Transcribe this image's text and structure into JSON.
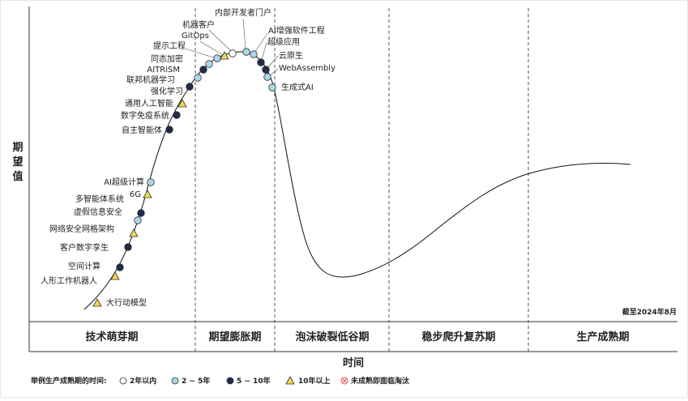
{
  "y_axis_label": [
    "期",
    "望",
    "值"
  ],
  "x_axis_label": "时间",
  "date_note": "截至2024年8月",
  "phases": [
    "技术萌芽期",
    "期望膨胀期",
    "泡沫破裂低谷期",
    "稳步爬升复苏期",
    "生产成熟期"
  ],
  "legend": {
    "title": "举例生产成熟期的时间:",
    "items": [
      {
        "label": "2年以内",
        "marker": "circle-white",
        "color": "#ffffff"
      },
      {
        "label": "2 ~ 5年",
        "marker": "circle-light",
        "color": "#a8d8ea"
      },
      {
        "label": "5 ~ 10年",
        "marker": "circle-dark",
        "color": "#1f2a4d"
      },
      {
        "label": "10年以上",
        "marker": "triangle",
        "color": "#f2d94e"
      },
      {
        "label": "未成熟即面临淘汰",
        "marker": "cross-circle",
        "color": "#e05050"
      }
    ]
  },
  "technologies": [
    {
      "name": "大行动模型",
      "type": "triangle"
    },
    {
      "name": "人形工作机器人",
      "type": "triangle"
    },
    {
      "name": "空间计算",
      "type": "circle-dark"
    },
    {
      "name": "客户数字孪生",
      "type": "circle-dark"
    },
    {
      "name": "网络安全网格架构",
      "type": "triangle"
    },
    {
      "name": "虚假信息安全",
      "type": "circle-light"
    },
    {
      "name": "多智能体系统",
      "type": "circle-dark"
    },
    {
      "name": "6G",
      "type": "triangle"
    },
    {
      "name": "AI超级计算",
      "type": "circle-light"
    },
    {
      "name": "自主智能体",
      "type": "circle-dark"
    },
    {
      "name": "数字免疫系统",
      "type": "circle-dark"
    },
    {
      "name": "通用人工智能",
      "type": "triangle"
    },
    {
      "name": "强化学习",
      "type": "circle-dark"
    },
    {
      "name": "联邦机器学习",
      "type": "circle-light"
    },
    {
      "name": "AITRiSM",
      "type": "circle-dark"
    },
    {
      "name": "同态加密",
      "type": "circle-light"
    },
    {
      "name": "提示工程",
      "type": "circle-light"
    },
    {
      "name": "GitOps",
      "type": "triangle"
    },
    {
      "name": "机器客户",
      "type": "circle-white"
    },
    {
      "name": "内部开发者门户",
      "type": "circle-light"
    },
    {
      "name": "AI增强软件工程",
      "type": "circle-light"
    },
    {
      "name": "超级应用",
      "type": "circle-dark"
    },
    {
      "name": "云原生",
      "type": "circle-dark"
    },
    {
      "name": "WebAssembly",
      "type": "circle-light"
    },
    {
      "name": "生成式AI",
      "type": "circle-light"
    }
  ]
}
